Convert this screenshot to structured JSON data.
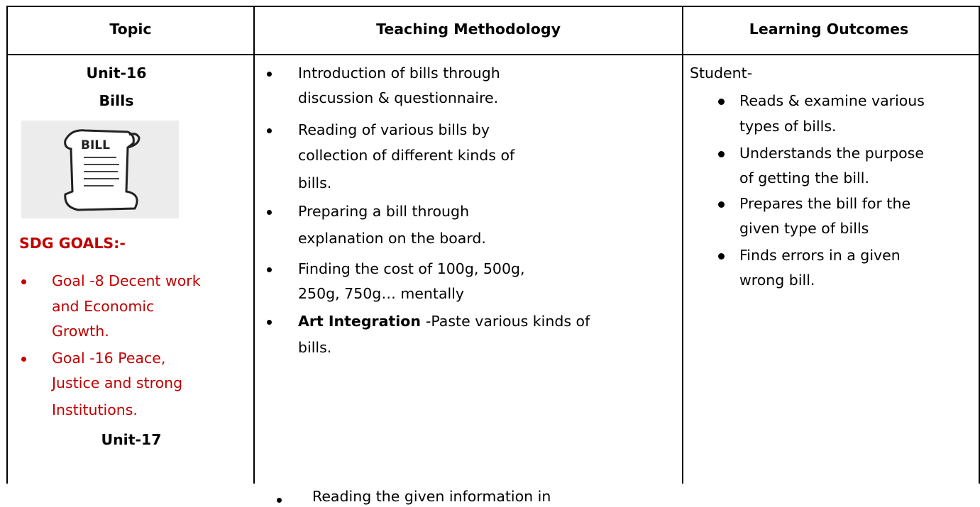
{
  "header": {
    "columns": [
      "Topic",
      "Teaching Methodology",
      "Learning Outcomes"
    ]
  },
  "topic": {
    "unit": "Unit-16",
    "name": "Bills",
    "image_label": "BILL",
    "sdg_heading": "SDG GOALS:-",
    "goals": [
      [
        "Goal -8 Decent work",
        "and Economic",
        "Growth."
      ],
      [
        "Goal -16 Peace,",
        "Justice and strong",
        "Institutions."
      ]
    ],
    "next_unit": "Unit-17"
  },
  "methodology": {
    "items": [
      {
        "lines": [
          "Introduction of bills through",
          "discussion & questionnaire."
        ]
      },
      {
        "lines": [
          "Reading of various bills by",
          "collection of different kinds of",
          "bills."
        ]
      },
      {
        "lines": [
          "Preparing a bill through",
          "explanation on the board."
        ]
      },
      {
        "lines": [
          "Finding the cost of 100g, 500g,",
          "250g, 750g… mentally"
        ]
      },
      {
        "bold": "Art Integration",
        "lines": [
          "-Paste various kinds of",
          "bills."
        ]
      }
    ],
    "next_item": "Reading the given information in"
  },
  "outcomes": {
    "lead": "Student-",
    "items": [
      [
        "Reads & examine various",
        "types of bills."
      ],
      [
        "Understands the purpose",
        "of getting the bill."
      ],
      [
        "Prepares the bill for the",
        "given type of bills"
      ],
      [
        "Finds errors in a given",
        "wrong bill."
      ]
    ]
  }
}
